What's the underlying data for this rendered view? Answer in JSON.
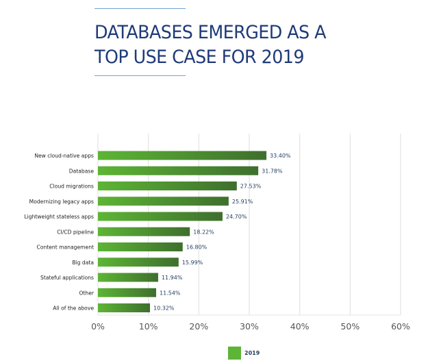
{
  "page": {
    "title_lines": [
      "DATABASES EMERGED AS A",
      "TOP USE CASE FOR 2019"
    ]
  },
  "chart_data": {
    "type": "bar",
    "orientation": "horizontal",
    "title": "DATABASES EMERGED AS A TOP USE CASE FOR 2019",
    "xlabel": "",
    "ylabel": "",
    "categories": [
      "New cloud-native apps",
      "Database",
      "Cloud migrations",
      "Modernizing legacy apps",
      "Lightweight stateless apps",
      "CI/CD pipeline",
      "Content management",
      "Big data",
      "Stateful applications",
      "Other",
      "All of the above"
    ],
    "series": [
      {
        "name": "2019",
        "color": "#5db535",
        "color_end": "#3f6f2e",
        "values": [
          33.4,
          31.78,
          27.53,
          25.91,
          24.7,
          18.22,
          16.8,
          15.99,
          11.94,
          11.54,
          10.32
        ]
      }
    ],
    "data_labels": [
      "33.40%",
      "31.78%",
      "27.53%",
      "25.91%",
      "24.70%",
      "18.22%",
      "16.80%",
      "15.99%",
      "11.94%",
      "11.54%",
      "10.32%"
    ],
    "xlim": [
      0,
      60
    ],
    "xticks": [
      0,
      10,
      20,
      30,
      40,
      50,
      60
    ],
    "xtick_labels": [
      "0%",
      "10%",
      "20%",
      "30%",
      "40%",
      "50%",
      "60%"
    ],
    "grid": true,
    "legend": {
      "position": "bottom-center",
      "entries": [
        "2019"
      ]
    }
  }
}
